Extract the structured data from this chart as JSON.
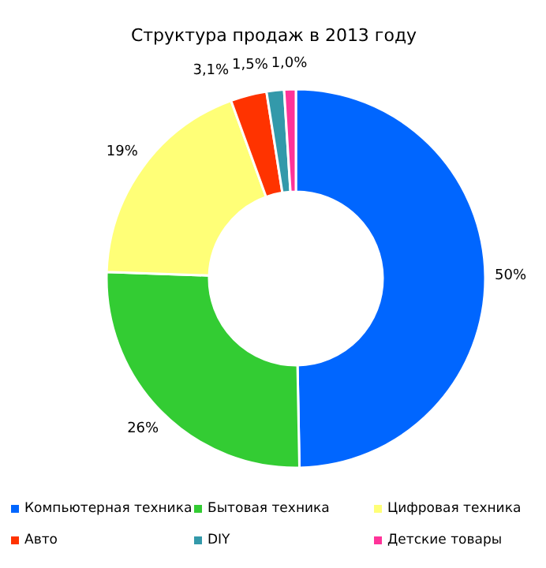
{
  "chart_data": {
    "type": "donut",
    "title": "Структура продаж в 2013 году",
    "categories": [
      "Компьютерная техника",
      "Бытовая техника",
      "Цифровая техника",
      "Авто",
      "DIY",
      "Детские товары"
    ],
    "values": [
      50,
      26,
      19,
      3.1,
      1.5,
      1.0
    ],
    "value_labels": [
      "50%",
      "26%",
      "19%",
      "3,1%",
      "1,5%",
      "1,0%"
    ],
    "colors": [
      "#0066ff",
      "#33cc33",
      "#ffff77",
      "#ff3300",
      "#3399aa",
      "#ff3399"
    ],
    "legend": "bottom"
  }
}
